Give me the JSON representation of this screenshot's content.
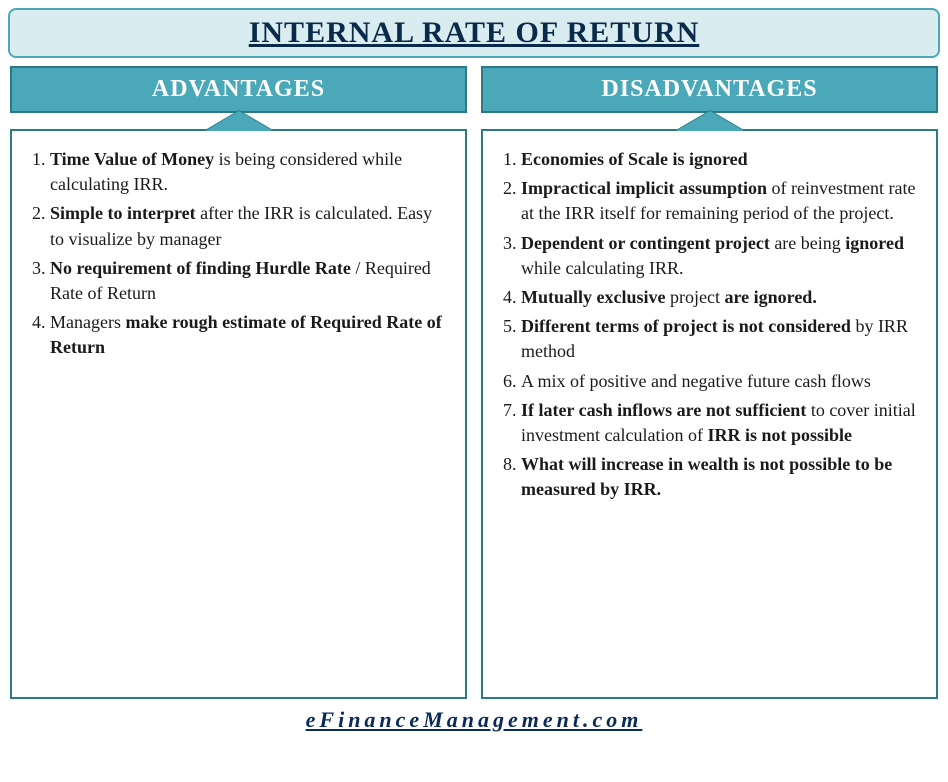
{
  "title": "INTERNAL RATE OF RETURN",
  "footer": "eFinanceManagement.com",
  "colors": {
    "title_bg": "#d9edf0",
    "title_border": "#4aa8b8",
    "title_color": "#0a2a4a",
    "header_bg": "#4aa8b8",
    "header_border": "#2c7a88",
    "header_color": "#ffffff",
    "body_color": "#1a1a1a",
    "footer_color": "#0a2a5a"
  },
  "left": {
    "heading": "ADVANTAGES",
    "items": [
      "<b>Time Value of Money</b> is being considered while calculating IRR.",
      "<b>Simple to interpret</b> after the IRR is calculated. Easy to visualize by manager",
      "<b>No requirement of finding Hurdle Rate</b> / Required Rate of Return",
      "Managers <b>make rough estimate of Required Rate of Return</b>"
    ]
  },
  "right": {
    "heading": "DISADVANTAGES",
    "items": [
      "<b>Economies of Scale is ignored</b>",
      "<b>Impractical implicit assumption</b> of reinvestment rate at the IRR itself for remaining period of the project.",
      "<b>Dependent or contingent project</b> are being <b>ignored</b> while calculating IRR.",
      "<b>Mutually exclusive</b> project <b>are ignored.</b>",
      "<b>Different terms of project is not considered</b> by IRR method",
      "A mix of positive and negative future cash flows",
      "<b>If later cash inflows are not sufficient</b> to cover initial investment calculation of <b>IRR is not possible</b>",
      "<b>What will increase in wealth is not possible to be measured by IRR.</b>"
    ]
  }
}
